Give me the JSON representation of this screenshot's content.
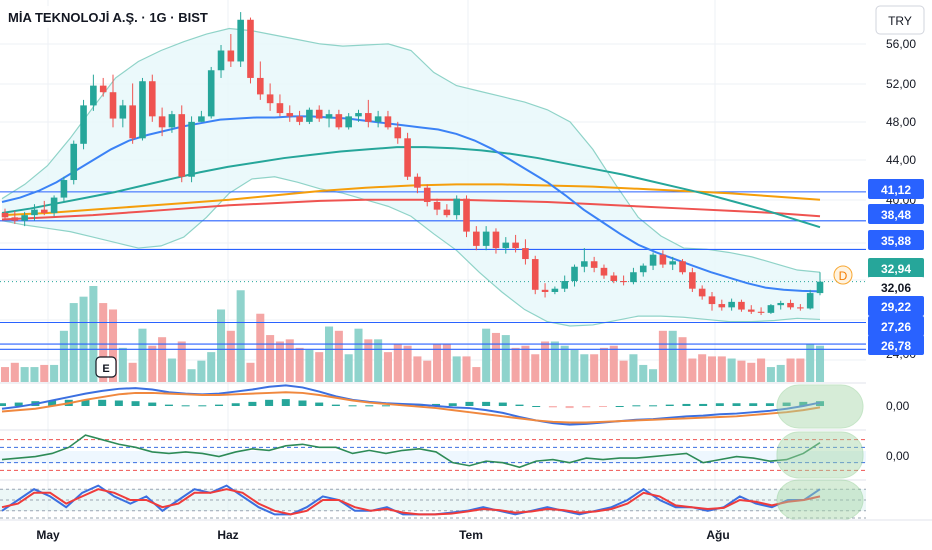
{
  "title": "MİA TEKNOLOJİ A.Ş. · 1G · BIST",
  "currency_badge": "TRY",
  "earnings_marker": "E",
  "dividend_marker": "D",
  "colors": {
    "up": "#26a69a",
    "down": "#ef5350",
    "up_vol": "#8fd3cc",
    "down_vol": "#f4a6a5",
    "ma_fast": "#3b82f6",
    "ma_mid": "#26a69a",
    "ma_slow_orange": "#f59e0b",
    "ma_slow_red": "#ef5350",
    "band": "#8fd3c8",
    "hline": "#2962ff"
  },
  "chart_data": [
    {
      "type": "candlestick",
      "name": "price",
      "x_ticks": [
        "May",
        "Haz",
        "Tem",
        "Ağu"
      ],
      "y_ticks": [
        "56,00",
        "52,00",
        "48,00",
        "44,00",
        "40,00",
        "24,00"
      ],
      "price_labels": [
        {
          "label": "41,12",
          "value": 41.12,
          "kind": "line"
        },
        {
          "label": "38,48",
          "value": 38.48,
          "kind": "line"
        },
        {
          "label": "35,88",
          "value": 35.88,
          "kind": "line"
        },
        {
          "label": "32,94",
          "value": 32.94,
          "kind": "last"
        },
        {
          "label": "32,06",
          "value": 32.06,
          "kind": "plain"
        },
        {
          "label": "29,22",
          "value": 29.22,
          "kind": "line"
        },
        {
          "label": "27,26",
          "value": 27.26,
          "kind": "line"
        },
        {
          "label": "26,78",
          "value": 26.78,
          "kind": "line"
        }
      ],
      "last_price_ref": 32.94,
      "candles": [
        [
          39.2,
          39.6,
          38.6,
          38.8
        ],
        [
          38.8,
          39.4,
          38.2,
          38.5
        ],
        [
          38.5,
          39.3,
          38.0,
          39.0
        ],
        [
          39.0,
          40.0,
          38.5,
          39.5
        ],
        [
          39.5,
          40.3,
          39.0,
          39.2
        ],
        [
          39.2,
          40.8,
          38.9,
          40.6
        ],
        [
          40.6,
          42.5,
          40.2,
          42.2
        ],
        [
          42.2,
          45.8,
          41.8,
          45.5
        ],
        [
          45.5,
          49.5,
          45.0,
          49.0
        ],
        [
          49.0,
          51.8,
          48.5,
          50.8
        ],
        [
          50.8,
          51.5,
          49.8,
          50.2
        ],
        [
          50.2,
          51.8,
          47.0,
          47.8
        ],
        [
          47.8,
          49.5,
          47.0,
          49.0
        ],
        [
          49.0,
          51.0,
          45.5,
          46.0
        ],
        [
          46.0,
          51.5,
          45.8,
          51.2
        ],
        [
          51.2,
          51.8,
          47.5,
          48.0
        ],
        [
          48.0,
          48.8,
          46.2,
          47.0
        ],
        [
          47.0,
          48.5,
          46.5,
          48.2
        ],
        [
          48.2,
          49.0,
          42.0,
          42.5
        ],
        [
          42.5,
          48.0,
          42.0,
          47.5
        ],
        [
          47.5,
          48.5,
          47.5,
          48.0
        ],
        [
          48.0,
          52.5,
          47.8,
          52.2
        ],
        [
          52.2,
          54.5,
          51.5,
          54.0
        ],
        [
          54.0,
          55.5,
          52.5,
          53.0
        ],
        [
          53.0,
          57.5,
          52.5,
          56.8
        ],
        [
          56.8,
          57.0,
          51.0,
          51.5
        ],
        [
          51.5,
          53.0,
          49.5,
          50.0
        ],
        [
          50.0,
          51.0,
          48.5,
          49.2
        ],
        [
          49.2,
          50.0,
          48.0,
          48.3
        ],
        [
          48.3,
          49.0,
          47.5,
          48.0
        ],
        [
          48.0,
          48.5,
          47.2,
          47.5
        ],
        [
          47.5,
          48.8,
          47.3,
          48.6
        ],
        [
          48.6,
          49.0,
          47.5,
          47.8
        ],
        [
          47.8,
          48.6,
          47.0,
          48.2
        ],
        [
          48.2,
          48.6,
          46.8,
          47.0
        ],
        [
          47.0,
          48.3,
          46.8,
          48.0
        ],
        [
          48.0,
          48.6,
          47.5,
          48.3
        ],
        [
          48.3,
          49.5,
          47.0,
          47.5
        ],
        [
          47.5,
          48.5,
          47.0,
          48.0
        ],
        [
          48.0,
          48.5,
          46.8,
          47.0
        ],
        [
          47.0,
          47.5,
          45.5,
          46.0
        ],
        [
          46.0,
          46.5,
          42.2,
          42.5
        ],
        [
          42.5,
          42.8,
          41.0,
          41.5
        ],
        [
          41.5,
          41.8,
          39.8,
          40.2
        ],
        [
          40.2,
          40.5,
          39.0,
          39.5
        ],
        [
          39.5,
          40.0,
          38.8,
          39.0
        ],
        [
          39.0,
          40.8,
          38.6,
          40.5
        ],
        [
          40.5,
          40.8,
          37.0,
          37.5
        ],
        [
          37.5,
          38.0,
          35.8,
          36.2
        ],
        [
          36.2,
          38.0,
          35.8,
          37.5
        ],
        [
          37.5,
          37.8,
          35.5,
          36.0
        ],
        [
          36.0,
          37.0,
          35.5,
          36.5
        ],
        [
          36.5,
          37.2,
          35.6,
          36.0
        ],
        [
          36.0,
          36.8,
          34.5,
          35.0
        ],
        [
          35.0,
          35.3,
          31.8,
          32.2
        ],
        [
          32.2,
          32.8,
          31.5,
          32.0
        ],
        [
          32.0,
          32.5,
          31.8,
          32.3
        ],
        [
          32.3,
          33.5,
          32.0,
          33.0
        ],
        [
          33.0,
          34.5,
          32.5,
          34.3
        ],
        [
          34.3,
          36.0,
          33.8,
          34.8
        ],
        [
          34.8,
          35.2,
          33.8,
          34.2
        ],
        [
          34.2,
          34.5,
          33.2,
          33.5
        ],
        [
          33.5,
          33.8,
          32.8,
          33.0
        ],
        [
          33.0,
          33.5,
          32.6,
          32.9
        ],
        [
          32.9,
          34.2,
          32.7,
          33.8
        ],
        [
          33.8,
          34.6,
          33.4,
          34.4
        ],
        [
          34.4,
          35.6,
          34.0,
          35.4
        ],
        [
          35.4,
          35.8,
          34.2,
          34.5
        ],
        [
          34.5,
          35.2,
          34.0,
          34.8
        ],
        [
          34.8,
          35.0,
          33.6,
          33.8
        ],
        [
          33.8,
          34.2,
          32.0,
          32.3
        ],
        [
          32.3,
          32.6,
          31.3,
          31.6
        ],
        [
          31.6,
          32.0,
          30.3,
          30.9
        ],
        [
          30.9,
          31.3,
          30.3,
          30.6
        ],
        [
          30.6,
          31.4,
          30.3,
          31.1
        ],
        [
          31.1,
          31.3,
          30.2,
          30.4
        ],
        [
          30.4,
          30.8,
          30.0,
          30.2
        ],
        [
          30.2,
          30.6,
          29.9,
          30.1
        ],
        [
          30.1,
          30.9,
          30.0,
          30.8
        ],
        [
          30.8,
          31.2,
          30.4,
          31.0
        ],
        [
          31.0,
          31.3,
          30.4,
          30.6
        ],
        [
          30.6,
          30.9,
          30.3,
          30.5
        ],
        [
          30.5,
          32.2,
          30.4,
          31.9
        ],
        [
          31.9,
          33.8,
          31.7,
          32.94
        ]
      ],
      "volume": [
        7,
        9,
        7,
        7,
        8,
        8,
        24,
        37,
        40,
        45,
        37,
        34,
        16,
        9,
        25,
        17,
        21,
        11,
        19,
        6,
        10,
        14,
        34,
        24,
        43,
        9,
        32,
        22,
        19,
        20,
        16,
        15,
        14,
        26,
        24,
        13,
        25,
        20,
        20,
        14,
        18,
        17,
        12,
        10,
        18,
        18,
        12,
        12,
        7,
        25,
        23,
        22,
        16,
        17,
        13,
        19,
        19,
        17,
        15,
        13,
        13,
        16,
        17,
        10,
        13,
        8,
        6,
        24,
        24,
        21,
        11,
        13,
        12,
        12,
        11,
        10,
        9,
        11,
        7,
        8,
        11,
        11,
        18,
        17
      ],
      "ma_fast": [
        40.2,
        40.6,
        41.2,
        42.0,
        43.0,
        44.0,
        45.0,
        45.8,
        46.3,
        46.7,
        47.1,
        47.4,
        47.7,
        47.8,
        47.9,
        47.9,
        48.0,
        48.0,
        47.9,
        47.8,
        47.6,
        47.4,
        47.2,
        47.0,
        46.8,
        46.4,
        45.8,
        45.0,
        44.0,
        43.0,
        42.0,
        40.8,
        39.5,
        38.4,
        37.3,
        36.3,
        35.6,
        35.0,
        34.4,
        33.8,
        33.3,
        32.8,
        32.4,
        32.2,
        32.1,
        32.06
      ],
      "ma_mid": [
        39.2,
        39.6,
        40.1,
        40.6,
        41.1,
        41.7,
        42.3,
        42.9,
        43.4,
        43.8,
        44.2,
        44.5,
        44.8,
        45.0,
        45.2,
        45.2,
        45.1,
        44.9,
        44.6,
        44.2,
        43.7,
        43.2,
        42.7,
        42.1,
        41.5,
        40.9,
        40.2,
        39.5,
        38.7,
        37.9
      ],
      "ma_slow_orange": [
        39.0,
        39.2,
        39.5,
        39.8,
        40.1,
        40.4,
        40.8,
        41.2,
        41.5,
        41.7,
        41.8,
        41.8,
        41.7,
        41.6,
        41.4,
        41.2,
        41.0,
        40.7,
        40.4
      ],
      "ma_slow_red": [
        38.6,
        38.8,
        39.0,
        39.3,
        39.6,
        39.9,
        40.1,
        40.3,
        40.4,
        40.4,
        40.4,
        40.3,
        40.2,
        40.0,
        39.8,
        39.6,
        39.4,
        39.2,
        38.9
      ],
      "band_upper": [
        40.5,
        41.8,
        43.5,
        46.0,
        48.8,
        51.5,
        53.0,
        54.0,
        54.8,
        55.5,
        56.0,
        55.8,
        55.4,
        55.0,
        54.6,
        54.4,
        54.5,
        54.6,
        54.0,
        52.0,
        50.8,
        50.3,
        49.8,
        49.3,
        48.6,
        47.5,
        45.0,
        41.8,
        38.8,
        37.1,
        36.0,
        35.9,
        35.6,
        35.2,
        34.6,
        34.0,
        33.8
      ],
      "band_lower": [
        38.5,
        38.1,
        37.8,
        37.5,
        37.0,
        36.5,
        36.0,
        36.2,
        37.0,
        38.8,
        41.0,
        42.3,
        42.5,
        42.0,
        41.4,
        41.0,
        40.4,
        39.8,
        38.9,
        37.3,
        35.8,
        33.8,
        32.0,
        30.4,
        29.3,
        28.9,
        29.0,
        29.4,
        29.8,
        29.8,
        29.7,
        29.5,
        29.3,
        29.3,
        29.4,
        29.6,
        29.5
      ],
      "ylim": [
        23.8,
        58.6
      ]
    },
    {
      "type": "line",
      "name": "macd",
      "y_ticks": [
        "0,00"
      ],
      "series": [
        {
          "values": [
            -0.2,
            -0.05,
            0.15,
            0.4,
            0.65,
            0.9,
            1.1,
            1.25,
            1.3,
            1.2,
            1.0,
            0.9,
            0.85,
            0.9,
            1.05,
            1.2,
            1.4,
            1.5,
            1.35,
            1.05,
            0.7,
            0.45,
            0.3,
            0.2,
            0.15,
            0.1,
            0.0,
            -0.1,
            -0.15,
            -0.3,
            -0.5,
            -0.8,
            -1.05,
            -1.25,
            -1.35,
            -1.3,
            -1.2,
            -1.1,
            -1.0,
            -0.95,
            -0.85,
            -0.75,
            -0.7,
            -0.6,
            -0.55,
            -0.45,
            -0.35,
            -0.2,
            0.0,
            0.25
          ]
        },
        {
          "values": [
            -0.4,
            -0.3,
            -0.2,
            0.0,
            0.2,
            0.45,
            0.65,
            0.85,
            0.95,
            0.95,
            0.9,
            0.85,
            0.8,
            0.8,
            0.85,
            0.9,
            0.95,
            1.0,
            0.95,
            0.8,
            0.6,
            0.4,
            0.25,
            0.15,
            0.05,
            -0.05,
            -0.15,
            -0.3,
            -0.45,
            -0.6,
            -0.75,
            -0.9,
            -1.05,
            -1.15,
            -1.2,
            -1.2,
            -1.15,
            -1.1,
            -1.05,
            -1.0,
            -0.95,
            -0.9,
            -0.85,
            -0.8,
            -0.75,
            -0.65,
            -0.55,
            -0.45,
            -0.3,
            -0.1
          ]
        }
      ],
      "histogram": [
        0.2,
        0.25,
        0.35,
        0.4,
        0.45,
        0.45,
        0.45,
        0.4,
        0.35,
        0.25,
        0.1,
        0.05,
        0.05,
        0.1,
        0.2,
        0.3,
        0.45,
        0.5,
        0.4,
        0.25,
        0.1,
        0.05,
        0.05,
        0.05,
        0.1,
        0.15,
        0.15,
        0.2,
        0.3,
        0.3,
        0.25,
        0.1,
        0.0,
        -0.1,
        -0.15,
        -0.1,
        -0.05,
        0.0,
        0.05,
        0.05,
        0.1,
        0.15,
        0.15,
        0.2,
        0.2,
        0.2,
        0.2,
        0.25,
        0.3,
        0.35
      ],
      "ylim": [
        -1.6,
        1.6
      ]
    },
    {
      "type": "line",
      "name": "oscillator",
      "y_ticks": [
        "0,00"
      ],
      "series": [
        {
          "values": [
            -0.3,
            -0.2,
            -0.1,
            0.1,
            0.5,
            1.3,
            1.0,
            0.7,
            0.5,
            0.2,
            0.1,
            0.2,
            0.1,
            -0.1,
            0.2,
            0.4,
            0.3,
            0.6,
            0.7,
            0.5,
            0.5,
            0.1,
            0.3,
            0.1,
            0.3,
            0.4,
            0.2,
            -0.5,
            -0.7,
            -0.4,
            -0.5,
            -0.8,
            -0.4,
            -0.3,
            -0.5,
            -0.2,
            -0.3,
            -0.2,
            -0.2,
            -0.1,
            0.0,
            0.1,
            -0.5,
            -0.3,
            -0.1,
            -0.2,
            -0.4,
            -0.3,
            0.1,
            0.8
          ]
        }
      ],
      "levels": [
        1.0,
        0.5,
        -0.5,
        -1.0
      ],
      "ylim": [
        -1.5,
        1.5
      ]
    },
    {
      "type": "line",
      "name": "stochastic",
      "series": [
        {
          "values": [
            0.2,
            0.5,
            0.8,
            0.6,
            0.3,
            0.7,
            0.9,
            0.6,
            0.4,
            0.6,
            0.2,
            0.5,
            0.8,
            0.7,
            0.9,
            0.6,
            0.3,
            0.1,
            0.1,
            0.3,
            0.6,
            0.5,
            0.2,
            0.2,
            0.3,
            0.1,
            0.1,
            0.1,
            0.15,
            0.2,
            0.3,
            0.2,
            0.1,
            0.2,
            0.3,
            0.2,
            0.1,
            0.2,
            0.3,
            0.5,
            0.8,
            0.5,
            0.3,
            0.3,
            0.2,
            0.3,
            0.6,
            0.4,
            0.3,
            0.5,
            0.5,
            0.8
          ]
        },
        {
          "values": [
            0.3,
            0.4,
            0.7,
            0.7,
            0.4,
            0.6,
            0.8,
            0.7,
            0.5,
            0.5,
            0.3,
            0.4,
            0.7,
            0.7,
            0.8,
            0.7,
            0.4,
            0.2,
            0.1,
            0.2,
            0.5,
            0.5,
            0.3,
            0.2,
            0.25,
            0.15,
            0.1,
            0.1,
            0.12,
            0.18,
            0.25,
            0.22,
            0.15,
            0.18,
            0.25,
            0.22,
            0.15,
            0.18,
            0.25,
            0.4,
            0.7,
            0.6,
            0.35,
            0.3,
            0.25,
            0.28,
            0.5,
            0.45,
            0.35,
            0.45,
            0.5,
            0.6
          ]
        }
      ],
      "levels": [
        0.8,
        0.5,
        0.2,
        0.0
      ],
      "ylim": [
        0,
        1
      ]
    }
  ]
}
